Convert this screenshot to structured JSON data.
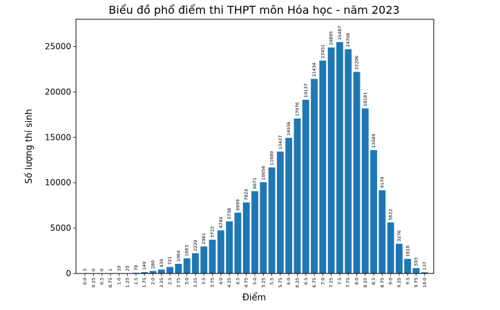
{
  "chart_data": {
    "type": "bar",
    "title": "Biểu đồ phổ điểm thi THPT môn Hóa học - năm 2023",
    "xlabel": "Điểm",
    "ylabel": "Số lượng thí sinh",
    "ylim": [
      0,
      28000
    ],
    "yticks": [
      0,
      5000,
      10000,
      15000,
      20000,
      25000
    ],
    "grid": false,
    "bar_color": "#1f77b4",
    "categories": [
      "0.0",
      "0.25",
      "0.5",
      "0.75",
      "1.0",
      "1.25",
      "1.5",
      "1.75",
      "2.0",
      "2.25",
      "2.5",
      "2.75",
      "3.0",
      "3.25",
      "3.5",
      "3.75",
      "4.0",
      "4.25",
      "4.5",
      "4.75",
      "5.0",
      "5.25",
      "5.5",
      "5.75",
      "6.0",
      "6.25",
      "6.5",
      "6.75",
      "7.0",
      "7.25",
      "7.5",
      "7.75",
      "8.0",
      "8.25",
      "8.5",
      "8.75",
      "9.0",
      "9.25",
      "9.5",
      "9.75",
      "10.0"
    ],
    "values": [
      3,
      0,
      0,
      1,
      10,
      25,
      78,
      149,
      280,
      439,
      721,
      1064,
      1663,
      2229,
      2981,
      3722,
      4749,
      5738,
      6699,
      7824,
      9071,
      10056,
      11680,
      13427,
      14936,
      17076,
      19137,
      21434,
      23451,
      24895,
      25487,
      24708,
      22206,
      18181,
      13589,
      9170,
      5622,
      3276,
      1610,
      593,
      137
    ]
  }
}
